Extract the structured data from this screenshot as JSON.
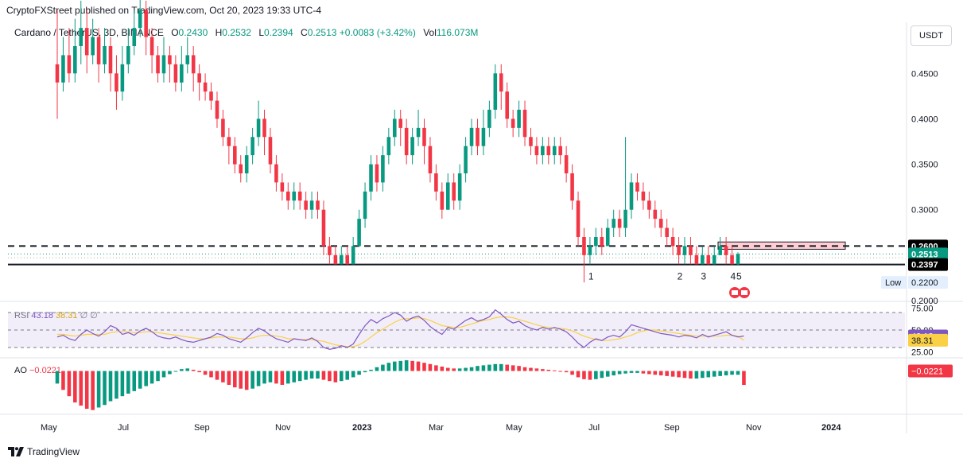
{
  "header": {
    "publisher": "CryptoFXStreet published on TradingView.com, Oct 20, 2023 19:33 UTC-4"
  },
  "legend": {
    "symbol": "Cardano / TetherUS, 3D, BINANCE",
    "open_label": "O",
    "open": "0.2430",
    "high_label": "H",
    "high": "0.2532",
    "low_label": "L",
    "low": "0.2394",
    "close_label": "C",
    "close": "0.2513",
    "change": "+0.0083 (+3.42%)",
    "vol_label": "Vol",
    "vol": "116.073M"
  },
  "currency_button": "USDT",
  "rsi_legend": {
    "name": "RSI",
    "v1": "43.18",
    "v2": "38.31",
    "v3": "∅ ∅"
  },
  "ao_legend": {
    "name": "AO",
    "v": "−0.0221"
  },
  "footer": {
    "brand": "TradingView"
  },
  "colors": {
    "up": "#089981",
    "down": "#f23645",
    "rsi": "#7e57c2",
    "rsi_ma": "#f9d046",
    "zone": "#ffcdd2"
  },
  "chart_data": {
    "type": "candlestick",
    "x_ticks": [
      "May",
      "Jul",
      "Sep",
      "Nov",
      "2023",
      "Mar",
      "May",
      "Jul",
      "Sep",
      "Nov",
      "2024"
    ],
    "price_axis": {
      "ticks": [
        0.45,
        0.4,
        0.35,
        0.3,
        0.2
      ],
      "tick_labels": [
        "0.4500",
        "0.4000",
        "0.3500",
        "0.3000",
        "0.2000"
      ],
      "ylim": [
        0.2,
        0.48
      ]
    },
    "levels": {
      "resistance": 0.26,
      "resistance_label": "0.2600",
      "support": 0.2397,
      "support_label": "0.2397",
      "last": 0.2513,
      "last_label": "0.2513",
      "low_tag": "Low",
      "low": 0.22,
      "low_label": "0.2200"
    },
    "supply_zone": {
      "from": 0.2565,
      "to": 0.2645
    },
    "wave_labels": [
      "1",
      "2",
      "3",
      "4",
      "5"
    ],
    "candles": [
      [
        0.46,
        0.44,
        0.52,
        0.4
      ],
      [
        0.44,
        0.47,
        0.49,
        0.43
      ],
      [
        0.47,
        0.45,
        0.5,
        0.44
      ],
      [
        0.45,
        0.48,
        0.51,
        0.44
      ],
      [
        0.48,
        0.5,
        0.53,
        0.46
      ],
      [
        0.5,
        0.47,
        0.52,
        0.45
      ],
      [
        0.47,
        0.49,
        0.51,
        0.46
      ],
      [
        0.49,
        0.46,
        0.5,
        0.44
      ],
      [
        0.46,
        0.48,
        0.5,
        0.45
      ],
      [
        0.48,
        0.45,
        0.49,
        0.43
      ],
      [
        0.45,
        0.43,
        0.47,
        0.41
      ],
      [
        0.43,
        0.46,
        0.48,
        0.42
      ],
      [
        0.46,
        0.48,
        0.5,
        0.45
      ],
      [
        0.48,
        0.5,
        0.52,
        0.47
      ],
      [
        0.5,
        0.52,
        0.54,
        0.49
      ],
      [
        0.52,
        0.49,
        0.53,
        0.47
      ],
      [
        0.49,
        0.47,
        0.5,
        0.45
      ],
      [
        0.47,
        0.45,
        0.48,
        0.44
      ],
      [
        0.45,
        0.47,
        0.49,
        0.44
      ],
      [
        0.47,
        0.46,
        0.48,
        0.44
      ],
      [
        0.46,
        0.44,
        0.47,
        0.43
      ],
      [
        0.44,
        0.46,
        0.48,
        0.43
      ],
      [
        0.46,
        0.47,
        0.49,
        0.45
      ],
      [
        0.47,
        0.45,
        0.48,
        0.43
      ],
      [
        0.45,
        0.44,
        0.46,
        0.42
      ],
      [
        0.44,
        0.43,
        0.45,
        0.42
      ],
      [
        0.43,
        0.42,
        0.44,
        0.41
      ],
      [
        0.42,
        0.4,
        0.43,
        0.39
      ],
      [
        0.4,
        0.38,
        0.41,
        0.37
      ],
      [
        0.38,
        0.37,
        0.39,
        0.35
      ],
      [
        0.37,
        0.35,
        0.38,
        0.34
      ],
      [
        0.35,
        0.34,
        0.36,
        0.33
      ],
      [
        0.34,
        0.36,
        0.37,
        0.33
      ],
      [
        0.36,
        0.38,
        0.39,
        0.35
      ],
      [
        0.38,
        0.4,
        0.42,
        0.37
      ],
      [
        0.4,
        0.38,
        0.41,
        0.36
      ],
      [
        0.38,
        0.35,
        0.39,
        0.34
      ],
      [
        0.35,
        0.33,
        0.36,
        0.32
      ],
      [
        0.33,
        0.32,
        0.34,
        0.31
      ],
      [
        0.32,
        0.31,
        0.33,
        0.3
      ],
      [
        0.31,
        0.32,
        0.33,
        0.3
      ],
      [
        0.32,
        0.31,
        0.33,
        0.3
      ],
      [
        0.31,
        0.3,
        0.32,
        0.29
      ],
      [
        0.3,
        0.31,
        0.32,
        0.29
      ],
      [
        0.31,
        0.3,
        0.32,
        0.29
      ],
      [
        0.3,
        0.26,
        0.31,
        0.25
      ],
      [
        0.26,
        0.25,
        0.27,
        0.24
      ],
      [
        0.25,
        0.24,
        0.26,
        0.24
      ],
      [
        0.24,
        0.25,
        0.26,
        0.24
      ],
      [
        0.25,
        0.24,
        0.26,
        0.24
      ],
      [
        0.24,
        0.26,
        0.27,
        0.24
      ],
      [
        0.26,
        0.29,
        0.3,
        0.26
      ],
      [
        0.29,
        0.32,
        0.33,
        0.28
      ],
      [
        0.32,
        0.35,
        0.36,
        0.31
      ],
      [
        0.35,
        0.33,
        0.36,
        0.32
      ],
      [
        0.33,
        0.36,
        0.37,
        0.32
      ],
      [
        0.36,
        0.38,
        0.39,
        0.35
      ],
      [
        0.38,
        0.4,
        0.41,
        0.37
      ],
      [
        0.4,
        0.39,
        0.41,
        0.37
      ],
      [
        0.39,
        0.36,
        0.4,
        0.35
      ],
      [
        0.36,
        0.38,
        0.39,
        0.35
      ],
      [
        0.38,
        0.39,
        0.41,
        0.37
      ],
      [
        0.39,
        0.37,
        0.4,
        0.35
      ],
      [
        0.37,
        0.34,
        0.38,
        0.33
      ],
      [
        0.34,
        0.32,
        0.35,
        0.31
      ],
      [
        0.32,
        0.3,
        0.33,
        0.29
      ],
      [
        0.3,
        0.33,
        0.34,
        0.3
      ],
      [
        0.33,
        0.31,
        0.34,
        0.3
      ],
      [
        0.31,
        0.34,
        0.35,
        0.3
      ],
      [
        0.34,
        0.37,
        0.38,
        0.33
      ],
      [
        0.37,
        0.39,
        0.4,
        0.36
      ],
      [
        0.39,
        0.37,
        0.4,
        0.36
      ],
      [
        0.37,
        0.39,
        0.41,
        0.36
      ],
      [
        0.39,
        0.41,
        0.42,
        0.38
      ],
      [
        0.41,
        0.45,
        0.46,
        0.4
      ],
      [
        0.45,
        0.43,
        0.46,
        0.41
      ],
      [
        0.43,
        0.4,
        0.44,
        0.39
      ],
      [
        0.4,
        0.39,
        0.41,
        0.38
      ],
      [
        0.39,
        0.41,
        0.42,
        0.38
      ],
      [
        0.41,
        0.38,
        0.42,
        0.37
      ],
      [
        0.38,
        0.37,
        0.39,
        0.36
      ],
      [
        0.37,
        0.36,
        0.38,
        0.35
      ],
      [
        0.36,
        0.37,
        0.38,
        0.35
      ],
      [
        0.37,
        0.36,
        0.38,
        0.35
      ],
      [
        0.36,
        0.37,
        0.38,
        0.35
      ],
      [
        0.37,
        0.36,
        0.38,
        0.35
      ],
      [
        0.36,
        0.34,
        0.37,
        0.33
      ],
      [
        0.34,
        0.31,
        0.35,
        0.3
      ],
      [
        0.31,
        0.27,
        0.32,
        0.26
      ],
      [
        0.27,
        0.25,
        0.28,
        0.22
      ],
      [
        0.25,
        0.26,
        0.27,
        0.24
      ],
      [
        0.26,
        0.27,
        0.28,
        0.25
      ],
      [
        0.27,
        0.26,
        0.28,
        0.25
      ],
      [
        0.26,
        0.28,
        0.29,
        0.26
      ],
      [
        0.28,
        0.29,
        0.3,
        0.27
      ],
      [
        0.29,
        0.28,
        0.3,
        0.27
      ],
      [
        0.28,
        0.3,
        0.38,
        0.27
      ],
      [
        0.3,
        0.33,
        0.34,
        0.29
      ],
      [
        0.33,
        0.32,
        0.34,
        0.31
      ],
      [
        0.32,
        0.31,
        0.33,
        0.3
      ],
      [
        0.31,
        0.3,
        0.32,
        0.29
      ],
      [
        0.3,
        0.29,
        0.31,
        0.28
      ],
      [
        0.29,
        0.28,
        0.3,
        0.27
      ],
      [
        0.28,
        0.27,
        0.29,
        0.26
      ],
      [
        0.27,
        0.26,
        0.28,
        0.25
      ],
      [
        0.26,
        0.25,
        0.27,
        0.24
      ],
      [
        0.25,
        0.26,
        0.27,
        0.24
      ],
      [
        0.26,
        0.25,
        0.27,
        0.24
      ],
      [
        0.25,
        0.24,
        0.26,
        0.24
      ],
      [
        0.24,
        0.25,
        0.26,
        0.24
      ],
      [
        0.25,
        0.24,
        0.26,
        0.24
      ],
      [
        0.24,
        0.25,
        0.26,
        0.24
      ],
      [
        0.25,
        0.26,
        0.27,
        0.25
      ],
      [
        0.26,
        0.25,
        0.27,
        0.24
      ],
      [
        0.25,
        0.24,
        0.26,
        0.24
      ],
      [
        0.24,
        0.2513,
        0.2532,
        0.2394
      ]
    ],
    "rsi_axis": {
      "ticks": [
        75,
        50,
        25
      ],
      "tick_labels": [
        "75.00",
        "50.00",
        "25.00"
      ],
      "ylim": [
        25,
        75
      ]
    },
    "rsi": [
      42,
      44,
      40,
      38,
      45,
      50,
      46,
      43,
      48,
      55,
      52,
      45,
      47,
      44,
      49,
      52,
      48,
      43,
      41,
      40,
      42,
      39,
      37,
      36,
      38,
      40,
      42,
      46,
      44,
      40,
      38,
      36,
      41,
      47,
      52,
      49,
      44,
      40,
      38,
      36,
      40,
      39,
      38,
      41,
      37,
      30,
      28,
      29,
      32,
      30,
      34,
      45,
      55,
      62,
      58,
      63,
      66,
      70,
      67,
      60,
      64,
      66,
      61,
      54,
      49,
      45,
      53,
      51,
      56,
      61,
      64,
      60,
      62,
      65,
      73,
      68,
      62,
      58,
      60,
      55,
      52,
      50,
      53,
      51,
      53,
      51,
      48,
      42,
      35,
      30,
      36,
      40,
      38,
      42,
      44,
      42,
      48,
      56,
      54,
      52,
      50,
      48,
      46,
      45,
      44,
      42,
      44,
      43,
      41,
      45,
      42,
      44,
      46,
      48,
      44,
      42,
      43.18
    ],
    "rsi_ma": [
      45,
      45,
      44,
      43,
      44,
      45,
      45,
      45,
      45,
      47,
      48,
      48,
      48,
      47,
      47,
      48,
      48,
      47,
      46,
      45,
      44,
      43,
      42,
      41,
      40,
      40,
      41,
      42,
      42,
      42,
      41,
      40,
      40,
      41,
      43,
      44,
      44,
      43,
      42,
      40,
      40,
      39,
      39,
      39,
      38,
      37,
      35,
      33,
      32,
      31,
      31,
      33,
      37,
      42,
      47,
      51,
      55,
      59,
      62,
      63,
      63,
      64,
      63,
      61,
      58,
      55,
      54,
      53,
      53,
      55,
      57,
      59,
      61,
      62,
      64,
      65,
      65,
      64,
      62,
      60,
      58,
      56,
      54,
      53,
      52,
      52,
      51,
      49,
      46,
      43,
      41,
      39,
      38,
      38,
      39,
      40,
      42,
      44,
      47,
      49,
      50,
      50,
      49,
      48,
      47,
      46,
      45,
      44,
      43,
      43,
      43,
      43,
      43,
      44,
      44,
      43,
      38.31
    ],
    "ao": [
      -0.02,
      -0.03,
      -0.04,
      -0.05,
      -0.055,
      -0.06,
      -0.062,
      -0.058,
      -0.054,
      -0.048,
      -0.044,
      -0.04,
      -0.036,
      -0.032,
      -0.028,
      -0.024,
      -0.02,
      -0.016,
      -0.01,
      -0.005,
      0.0,
      0.003,
      0.004,
      0.002,
      -0.002,
      -0.006,
      -0.01,
      -0.014,
      -0.018,
      -0.022,
      -0.026,
      -0.028,
      -0.03,
      -0.028,
      -0.024,
      -0.02,
      -0.018,
      -0.02,
      -0.022,
      -0.02,
      -0.018,
      -0.016,
      -0.014,
      -0.012,
      -0.012,
      -0.014,
      -0.016,
      -0.018,
      -0.016,
      -0.014,
      -0.01,
      -0.006,
      -0.002,
      0.002,
      0.006,
      0.01,
      0.013,
      0.015,
      0.016,
      0.017,
      0.016,
      0.015,
      0.013,
      0.011,
      0.009,
      0.007,
      0.005,
      0.004,
      0.004,
      0.005,
      0.006,
      0.008,
      0.009,
      0.01,
      0.011,
      0.011,
      0.01,
      0.009,
      0.008,
      0.006,
      0.005,
      0.004,
      0.003,
      0.002,
      0.001,
      0.0,
      -0.002,
      -0.006,
      -0.01,
      -0.013,
      -0.014,
      -0.013,
      -0.011,
      -0.009,
      -0.007,
      -0.005,
      -0.004,
      -0.003,
      -0.003,
      -0.004,
      -0.005,
      -0.006,
      -0.007,
      -0.008,
      -0.009,
      -0.01,
      -0.011,
      -0.012,
      -0.012,
      -0.011,
      -0.01,
      -0.009,
      -0.008,
      -0.007,
      -0.006,
      -0.006,
      -0.0221
    ],
    "ao_axis": {
      "tick_labels": []
    }
  }
}
